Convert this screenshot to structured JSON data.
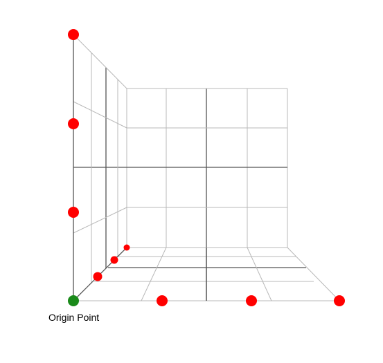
{
  "origin_label": "Origin Point",
  "colors": {
    "background": "#ffffff",
    "grid_light": "#b8b8b8",
    "grid_dark": "#555555",
    "marker": "#ff0000",
    "origin": "#1a8a1a"
  }
}
